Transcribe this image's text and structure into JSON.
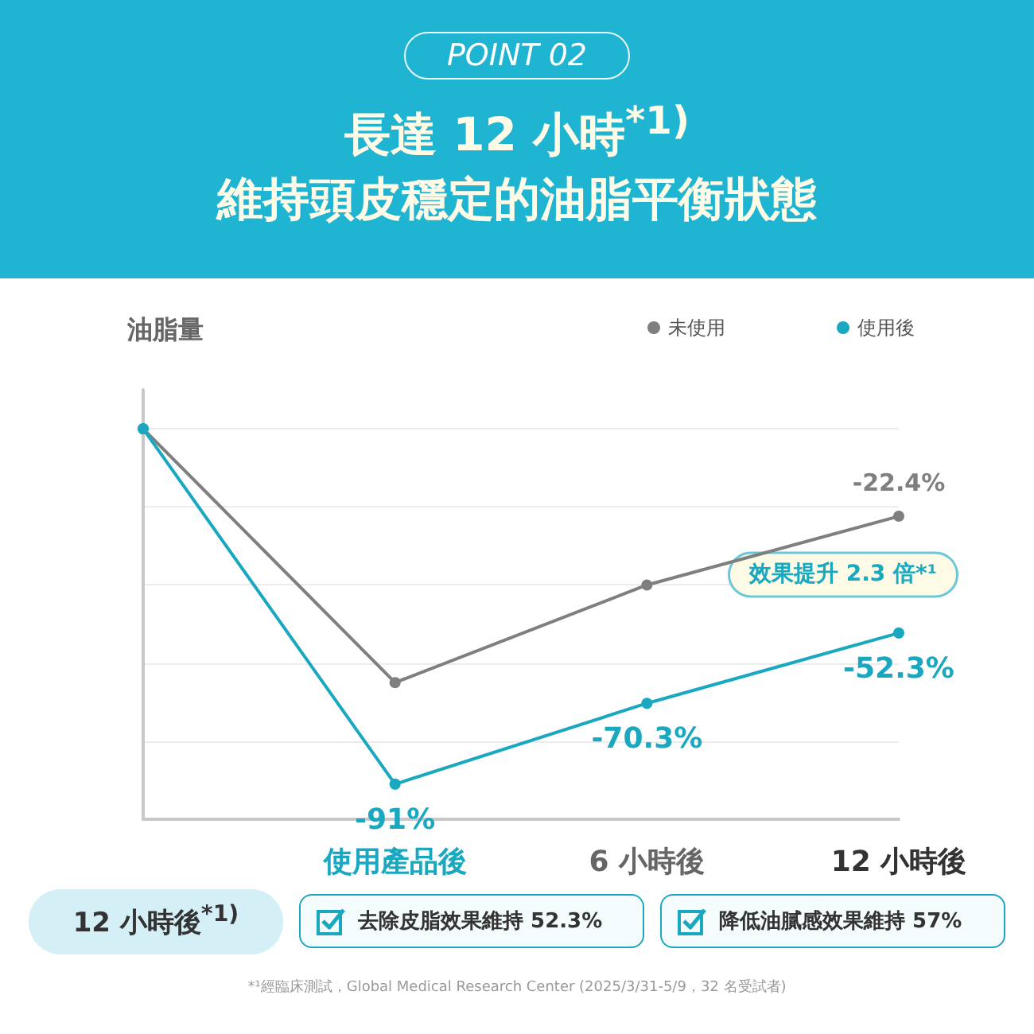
{
  "chart_data": {
    "type": "line",
    "title": "長達 12 小時$^{*1)}$\n維持頭皮穩定的油脂平衡狀態",
    "ylabel": "油脂量",
    "categories": [
      null,
      "使用產品後",
      "6 小時後",
      "12 小時後"
    ],
    "series": [
      {
        "name": "未使用",
        "color": "#7f7f7f",
        "values": [
          0,
          -65,
          -40,
          -22.4
        ],
        "value_labels": [
          null,
          null,
          null,
          "-22.4%"
        ]
      },
      {
        "name": "使用後",
        "color": "#1aa8c0",
        "values": [
          0,
          -91,
          -70.3,
          -52.3
        ],
        "value_labels": [
          null,
          "-91%",
          "-70.3%",
          "-52.3%"
        ]
      }
    ],
    "ylim": [
      -100,
      10
    ],
    "yticks": [
      {
        "value": -100,
        "label": null
      },
      {
        "value": -80,
        "label": null
      },
      {
        "value": -60,
        "label": null
      },
      {
        "value": -40,
        "label": null
      },
      {
        "value": -20,
        "label": null
      },
      {
        "value": 0,
        "label": null
      }
    ],
    "tick_labels": "x",
    "grid": "y",
    "legend": "top right",
    "marker": "circle",
    "line_style": "solid",
    "annotations": [
      "POINT 02",
      "效果提升 2.3 倍*¹",
      "12 小時後$^{*1)}$",
      "去除皮脂效果維持 52.3%",
      "降低油膩感效果維持 57%",
      "*¹經臨床測試，Global Medical Research Center (2025/3/31-5/9，32 名受試者)"
    ]
  }
}
